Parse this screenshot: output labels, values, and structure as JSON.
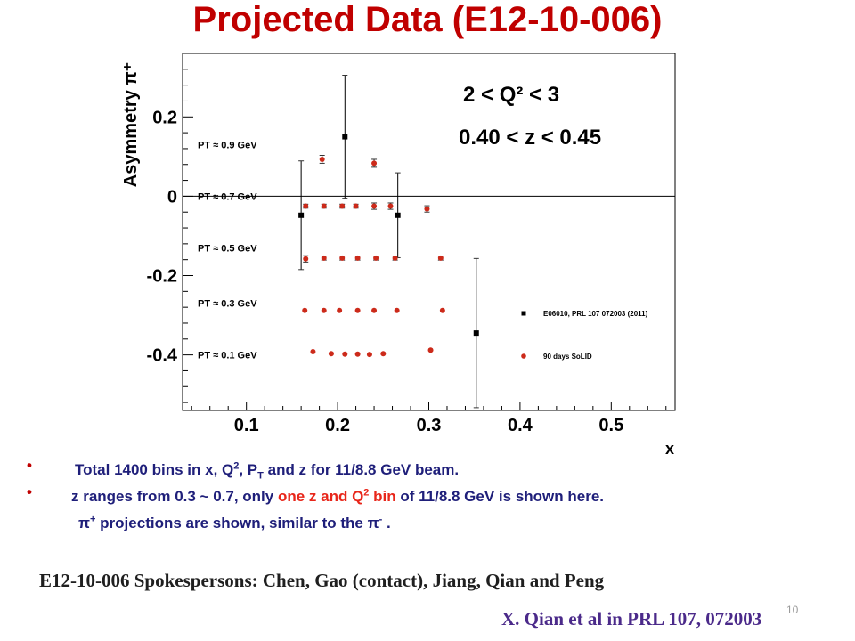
{
  "slide": {
    "title": "Projected Data (E12-10-006)",
    "bullets": [
      {
        "text_parts": [
          "Total 1400 bins in x, Q",
          "2",
          ", P",
          "T",
          " and z for 11/8.8 GeV beam."
        ]
      },
      {
        "text_parts": [
          "z ranges from 0.3 ~ 0.7, only ",
          "one z and Q",
          "2",
          " bin",
          " of 11/8.8 GeV is shown here."
        ]
      },
      {
        "text_parts": [
          "π",
          "+",
          " projections are shown, similar to the π",
          "-",
          " ."
        ]
      }
    ],
    "bullet_symbol": "•",
    "spokespersons": "E12-10-006 Spokespersons: Chen, Gao (contact), Jiang, Qian and Peng",
    "reference": "X. Qian et al in PRL 107, 072003",
    "slide_number": "10"
  },
  "chart_data": {
    "type": "scatter",
    "xlim": [
      0.03,
      0.57
    ],
    "ylim": [
      -0.54,
      0.36
    ],
    "xlabel": "x",
    "ylabel": "Asymmetry π⁺",
    "x_ticks": [
      0.1,
      0.2,
      0.3,
      0.4,
      0.5
    ],
    "x_tick_labels": [
      "0.1",
      "0.2",
      "0.3",
      "0.4",
      "0.5"
    ],
    "y_ticks": [
      -0.4,
      -0.2,
      0,
      0.2
    ],
    "y_tick_labels": [
      "-0.4",
      "-0.2",
      "0",
      "0.2"
    ],
    "zero_line": true,
    "annotations": [
      "2 < Q² < 3",
      "0.40 < z < 0.45"
    ],
    "band_labels": [
      {
        "text": "PT ≈ 0.9 GeV",
        "y": 0.13
      },
      {
        "text": "PT ≈ 0.7 GeV",
        "y": 0.0
      },
      {
        "text": "PT ≈ 0.5 GeV",
        "y": -0.13
      },
      {
        "text": "PT ≈ 0.3 GeV",
        "y": -0.27
      },
      {
        "text": "PT ≈ 0.1 GeV",
        "y": -0.4
      }
    ],
    "legend_position": "right",
    "series": [
      {
        "name": "E06010, PRL 107 072003 (2011)",
        "color": "#000000",
        "marker": "square",
        "points": [
          {
            "x": 0.16,
            "y": -0.048,
            "err": 0.137
          },
          {
            "x": 0.208,
            "y": 0.15,
            "err": 0.155
          },
          {
            "x": 0.266,
            "y": -0.048,
            "err": 0.107
          },
          {
            "x": 0.352,
            "y": -0.345,
            "err": 0.188
          }
        ]
      },
      {
        "name": "90 days SoLID",
        "color": "#cc2a1a",
        "marker": "circle",
        "points": [
          {
            "x": 0.183,
            "y": 0.093,
            "err": 0.01
          },
          {
            "x": 0.24,
            "y": 0.083,
            "err": 0.01
          },
          {
            "x": 0.165,
            "y": -0.025,
            "err": 0.005
          },
          {
            "x": 0.185,
            "y": -0.025,
            "err": 0.005
          },
          {
            "x": 0.205,
            "y": -0.025,
            "err": 0.005
          },
          {
            "x": 0.22,
            "y": -0.025,
            "err": 0.005
          },
          {
            "x": 0.24,
            "y": -0.025,
            "err": 0.008
          },
          {
            "x": 0.258,
            "y": -0.025,
            "err": 0.008
          },
          {
            "x": 0.298,
            "y": -0.032,
            "err": 0.008
          },
          {
            "x": 0.165,
            "y": -0.158,
            "err": 0.008
          },
          {
            "x": 0.185,
            "y": -0.156,
            "err": 0.005
          },
          {
            "x": 0.205,
            "y": -0.156,
            "err": 0.005
          },
          {
            "x": 0.222,
            "y": -0.156,
            "err": 0.005
          },
          {
            "x": 0.242,
            "y": -0.156,
            "err": 0.005
          },
          {
            "x": 0.263,
            "y": -0.156,
            "err": 0.005
          },
          {
            "x": 0.313,
            "y": -0.156,
            "err": 0.005
          },
          {
            "x": 0.164,
            "y": -0.288,
            "err": 0
          },
          {
            "x": 0.185,
            "y": -0.288,
            "err": 0
          },
          {
            "x": 0.202,
            "y": -0.288,
            "err": 0
          },
          {
            "x": 0.222,
            "y": -0.288,
            "err": 0
          },
          {
            "x": 0.24,
            "y": -0.288,
            "err": 0
          },
          {
            "x": 0.265,
            "y": -0.288,
            "err": 0
          },
          {
            "x": 0.315,
            "y": -0.288,
            "err": 0
          },
          {
            "x": 0.173,
            "y": -0.392,
            "err": 0
          },
          {
            "x": 0.193,
            "y": -0.397,
            "err": 0
          },
          {
            "x": 0.208,
            "y": -0.398,
            "err": 0
          },
          {
            "x": 0.222,
            "y": -0.398,
            "err": 0
          },
          {
            "x": 0.235,
            "y": -0.399,
            "err": 0
          },
          {
            "x": 0.25,
            "y": -0.397,
            "err": 0
          },
          {
            "x": 0.302,
            "y": -0.388,
            "err": 0
          }
        ]
      }
    ]
  }
}
